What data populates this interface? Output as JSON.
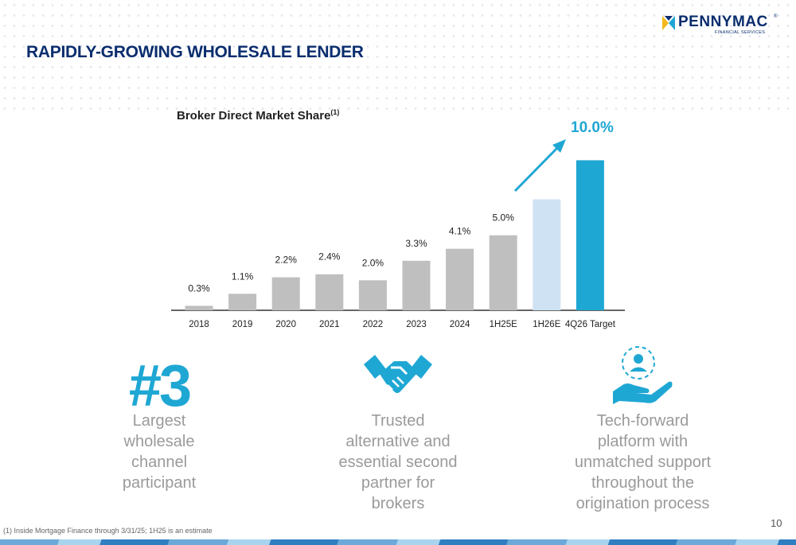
{
  "brand": {
    "name": "PENNYMAC",
    "registered_mark": "®",
    "tagline": "FINANCIAL SERVICES",
    "colors": {
      "navy": "#0a2d6e",
      "yellow": "#f4b81c",
      "accent": "#1fa7d4"
    }
  },
  "page": {
    "title": "RAPIDLY-GROWING WHOLESALE LENDER",
    "number": "10",
    "footnote": "(1) Inside Mortgage Finance through 3/31/25; 1H25 is an estimate"
  },
  "chart_title": {
    "text": "Broker Direct Market Share",
    "sup": "(1)"
  },
  "callout": {
    "text": "10.0%",
    "arrow": "up-right"
  },
  "chart_data": {
    "type": "bar",
    "title": "Broker Direct Market Share",
    "categories": [
      "2018",
      "2019",
      "2020",
      "2021",
      "2022",
      "2023",
      "2024",
      "1H25E",
      "1H26E",
      "4Q26 Target"
    ],
    "values": [
      0.3,
      1.1,
      2.2,
      2.4,
      2.0,
      3.3,
      4.1,
      5.0,
      7.4,
      10.0
    ],
    "labels": [
      "0.3%",
      "1.1%",
      "2.2%",
      "2.4%",
      "2.0%",
      "3.3%",
      "4.1%",
      "5.0%",
      "",
      ""
    ],
    "colors": [
      "#bfbfbf",
      "#bfbfbf",
      "#bfbfbf",
      "#bfbfbf",
      "#bfbfbf",
      "#bfbfbf",
      "#bfbfbf",
      "#bfbfbf",
      "#cfe2f3",
      "#1fa7d4"
    ],
    "ylim": [
      0,
      10.5
    ],
    "xlabel": "",
    "ylabel": "",
    "grid": false,
    "legend": "none"
  },
  "highlights": [
    {
      "stat": "#3",
      "icon": "rank-number",
      "caption": [
        "Largest",
        "wholesale",
        "channel",
        "participant"
      ]
    },
    {
      "icon": "handshake-icon",
      "caption": [
        "Trusted",
        "alternative and",
        "essential second",
        "partner for",
        "brokers"
      ]
    },
    {
      "icon": "hand-person-icon",
      "caption": [
        "Tech-forward",
        "platform with",
        "unmatched support",
        "throughout the",
        "origination process"
      ]
    }
  ]
}
